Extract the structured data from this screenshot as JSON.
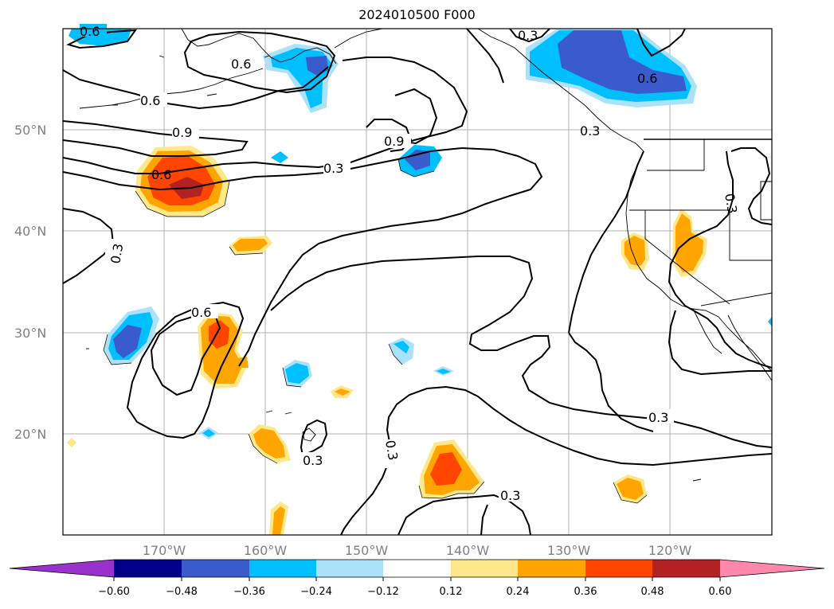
{
  "title": "2024010500 F000",
  "map": {
    "latitude_labels": [
      "50°N",
      "40°N",
      "30°N",
      "20°N"
    ],
    "longitude_labels": [
      "170°W",
      "160°W",
      "150°W",
      "140°W",
      "130°W",
      "120°W"
    ],
    "contour_labels": [
      "0.6",
      "0.6",
      "0.6",
      "0.9",
      "0.6",
      "0.9",
      "0.3",
      "0.3",
      "0.6",
      "0.6",
      "0.3",
      "0.3",
      "0.3",
      "0.3",
      "0.3",
      "0.3",
      "0.3"
    ]
  },
  "colorbar": {
    "ticks": [
      "−0.60",
      "−0.48",
      "−0.36",
      "−0.24",
      "−0.12",
      "0.12",
      "0.24",
      "0.36",
      "0.48",
      "0.60"
    ],
    "colors": {
      "under": "#9932cc",
      "n060": "#00008b",
      "n048": "#3a5bcc",
      "n036": "#00bfff",
      "n024": "#ace1fa",
      "neutral": "#ffffff",
      "p012": "#ffe88a",
      "p024": "#ffa500",
      "p036": "#ff4500",
      "p048": "#b22222",
      "over": "#ff88aa"
    }
  }
}
